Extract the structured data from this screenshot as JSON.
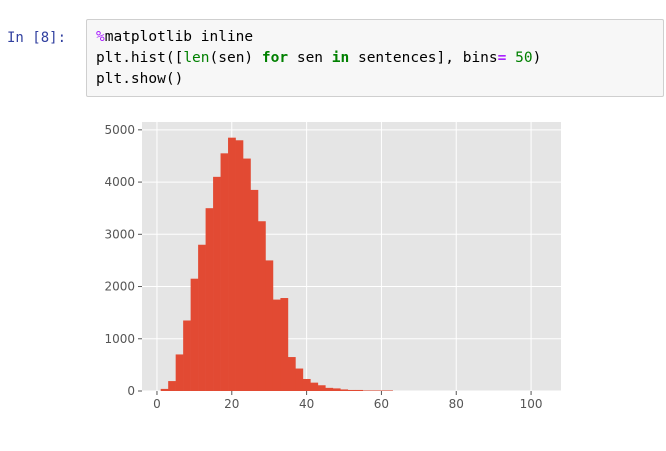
{
  "cell": {
    "prompt": "In [8]:",
    "code_lines": [
      [
        {
          "t": "%",
          "c": "mg"
        },
        {
          "t": "matplotlib inline",
          "c": ""
        }
      ],
      [
        {
          "t": "plt.hist([",
          "c": ""
        },
        {
          "t": "len",
          "c": "bi"
        },
        {
          "t": "(sen) ",
          "c": ""
        },
        {
          "t": "for",
          "c": "kw"
        },
        {
          "t": " sen ",
          "c": ""
        },
        {
          "t": "in",
          "c": "kw"
        },
        {
          "t": " sentences], bins",
          "c": ""
        },
        {
          "t": "=",
          "c": "op"
        },
        {
          "t": " ",
          "c": ""
        },
        {
          "t": "50",
          "c": "nu"
        },
        {
          "t": ")",
          "c": ""
        }
      ],
      [
        {
          "t": "plt.show()",
          "c": ""
        }
      ]
    ]
  },
  "colors": {
    "bar": "#e24a33",
    "plot_background": "#e5e5e5",
    "grid": "#ffffff",
    "tick_label": "#555555"
  },
  "chart_data": {
    "type": "bar",
    "style": "ggplot histogram",
    "bin_width": 2,
    "x": [
      2,
      4,
      6,
      8,
      10,
      12,
      14,
      16,
      18,
      20,
      22,
      24,
      26,
      28,
      30,
      32,
      34,
      36,
      38,
      40,
      42,
      44,
      46,
      48,
      50,
      52,
      54,
      56,
      58,
      60,
      62
    ],
    "values": [
      40,
      190,
      700,
      1350,
      2150,
      2800,
      3500,
      4100,
      4550,
      4850,
      4800,
      4450,
      3850,
      3250,
      2500,
      1750,
      1780,
      650,
      430,
      230,
      160,
      110,
      60,
      50,
      30,
      20,
      20,
      10,
      10,
      10,
      10
    ],
    "xlim": [
      -4,
      108
    ],
    "ylim": [
      0,
      5150
    ],
    "xticks": [
      0,
      20,
      40,
      60,
      80,
      100
    ],
    "xtick_labels": [
      "0",
      "20",
      "40",
      "60",
      "80",
      "100"
    ],
    "yticks": [
      0,
      1000,
      2000,
      3000,
      4000,
      5000
    ],
    "ytick_labels": [
      "0",
      "1000",
      "2000",
      "3000",
      "4000",
      "5000"
    ],
    "grid": true,
    "title": "",
    "xlabel": "",
    "ylabel": ""
  }
}
